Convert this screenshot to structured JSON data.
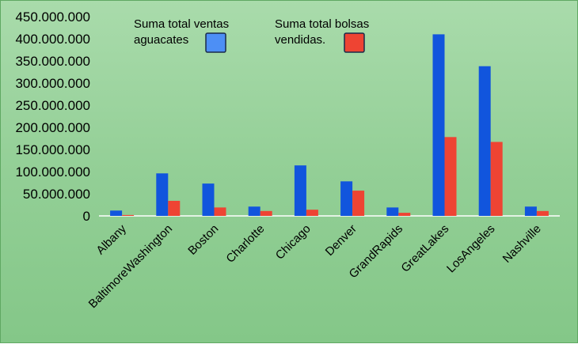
{
  "chart_data": {
    "type": "bar",
    "categories": [
      "Albany",
      "BaltimoreWashington",
      "Boston",
      "Charlotte",
      "Chicago",
      "Denver",
      "GrandRapids",
      "GreatLakes",
      "LosAngeles",
      "Nashville"
    ],
    "series": [
      {
        "name": "Suma total ventas aguacates",
        "name_lines": [
          "Suma total ventas",
          "aguacates"
        ],
        "color": "#1155dd",
        "legend_color": "#4d8ff5",
        "values": [
          12000000,
          96000000,
          73000000,
          21000000,
          114000000,
          78000000,
          19000000,
          410000000,
          338000000,
          21000000
        ]
      },
      {
        "name": "Suma total  bolsas vendidas.",
        "name_lines": [
          "Suma total  bolsas",
          "vendidas."
        ],
        "color": "#ee4433",
        "legend_color": "#ee4433",
        "values": [
          2000000,
          34000000,
          19000000,
          11000000,
          14000000,
          57000000,
          7000000,
          178000000,
          167000000,
          11000000
        ]
      }
    ],
    "ylim": [
      0,
      450000000
    ],
    "yticks": [
      0,
      50000000,
      100000000,
      150000000,
      200000000,
      250000000,
      300000000,
      350000000,
      400000000,
      450000000
    ],
    "ytick_labels": [
      "0",
      "50.000.000",
      "100.000.000",
      "150.000.000",
      "200.000.000",
      "250.000.000",
      "300.000.000",
      "350.000.000",
      "400.000.000",
      "450.000.000"
    ],
    "title": "",
    "xlabel": "",
    "ylabel": "",
    "grid": false,
    "legend_position": "top"
  }
}
